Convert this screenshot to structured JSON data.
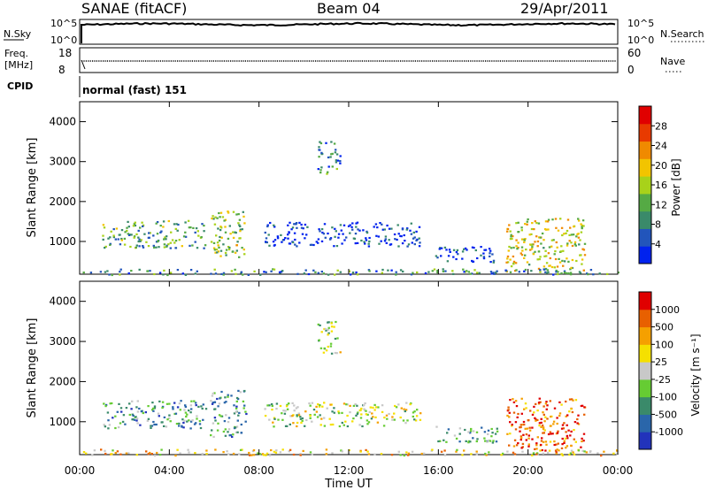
{
  "header": {
    "station": "SANAE (fitACF)",
    "beam": "Beam 04",
    "date": "29/Apr/2011"
  },
  "top_panels": {
    "nsky_label": "N.Sky",
    "nsky_ticks": [
      "10^5",
      "10^0"
    ],
    "nsearch_label": "N.Search",
    "nsearch_ticks": [
      "10^5",
      "10^0"
    ],
    "freq_label": "Freq.",
    "freq_unit": "[MHz]",
    "freq_ticks": [
      "18",
      "8"
    ],
    "nave_label": "Nave",
    "nave_ticks": [
      "60",
      "0"
    ],
    "cpid_label": "CPID",
    "cpid_value": "normal (fast) 151"
  },
  "colors": {
    "power_scale": [
      "#0022ee",
      "#2255bb",
      "#3a8a6a",
      "#55aa44",
      "#a8d21a",
      "#f2c400",
      "#f08a00",
      "#e83a00",
      "#e00000"
    ],
    "velocity_scale": [
      "#2233bb",
      "#2a66aa",
      "#3a8a6a",
      "#66cc33",
      "#c8c8c8",
      "#f5e000",
      "#f5a000",
      "#e86000",
      "#e00000"
    ]
  },
  "chart_data": [
    {
      "type": "heatmap",
      "name": "power-panel",
      "xlabel": "Time UT",
      "ylabel": "Slant Range [km]",
      "xlim": [
        0,
        24
      ],
      "ylim": [
        180,
        4500
      ],
      "x_ticks": [
        "00:00",
        "04:00",
        "08:00",
        "12:00",
        "16:00",
        "20:00",
        "00:00"
      ],
      "y_ticks": [
        "1000",
        "2000",
        "3000",
        "4000"
      ],
      "colorbar": {
        "label": "Power [dB]",
        "range": [
          0,
          32
        ],
        "tick_labels": [
          "4",
          "8",
          "12",
          "16",
          "20",
          "24",
          "28"
        ]
      },
      "regions": [
        {
          "t0": 1.0,
          "t1": 5.6,
          "r0": 850,
          "r1": 1550,
          "level": 0.35
        },
        {
          "t0": 5.8,
          "t1": 7.4,
          "r0": 600,
          "r1": 1800,
          "level": 0.45
        },
        {
          "t0": 8.2,
          "t1": 15.2,
          "r0": 900,
          "r1": 1500,
          "level": 0.1
        },
        {
          "t0": 10.6,
          "t1": 11.6,
          "r0": 2700,
          "r1": 3550,
          "level": 0.25
        },
        {
          "t0": 15.8,
          "t1": 18.6,
          "r0": 500,
          "r1": 900,
          "level": 0.1
        },
        {
          "t0": 19.0,
          "t1": 22.5,
          "r0": 250,
          "r1": 1600,
          "level": 0.55
        },
        {
          "t0": 0.0,
          "t1": 24.0,
          "r0": 180,
          "r1": 330,
          "level": 0.3
        }
      ]
    },
    {
      "type": "heatmap",
      "name": "velocity-panel",
      "xlabel": "Time UT",
      "ylabel": "Slant Range [km]",
      "xlim": [
        0,
        24
      ],
      "ylim": [
        180,
        4500
      ],
      "x_ticks": [
        "00:00",
        "04:00",
        "08:00",
        "12:00",
        "16:00",
        "20:00",
        "00:00"
      ],
      "y_ticks": [
        "1000",
        "2000",
        "3000",
        "4000"
      ],
      "colorbar": {
        "label": "Velocity [m s⁻¹]",
        "range": [
          -1000,
          1000
        ],
        "tick_labels": [
          "1000",
          "500",
          "100",
          "25",
          "-25",
          "-100",
          "-500",
          "-1000"
        ]
      },
      "regions": [
        {
          "t0": 1.0,
          "t1": 5.6,
          "r0": 850,
          "r1": 1550,
          "level": 0.3
        },
        {
          "t0": 5.8,
          "t1": 7.4,
          "r0": 600,
          "r1": 1800,
          "level": 0.3
        },
        {
          "t0": 8.2,
          "t1": 15.2,
          "r0": 900,
          "r1": 1500,
          "level": 0.5
        },
        {
          "t0": 10.6,
          "t1": 11.6,
          "r0": 2700,
          "r1": 3550,
          "level": 0.45
        },
        {
          "t0": 15.8,
          "t1": 18.6,
          "r0": 500,
          "r1": 900,
          "level": 0.35
        },
        {
          "t0": 19.0,
          "t1": 22.5,
          "r0": 250,
          "r1": 1600,
          "level": 0.85
        },
        {
          "t0": 0.0,
          "t1": 24.0,
          "r0": 180,
          "r1": 330,
          "level": 0.62
        }
      ]
    }
  ]
}
